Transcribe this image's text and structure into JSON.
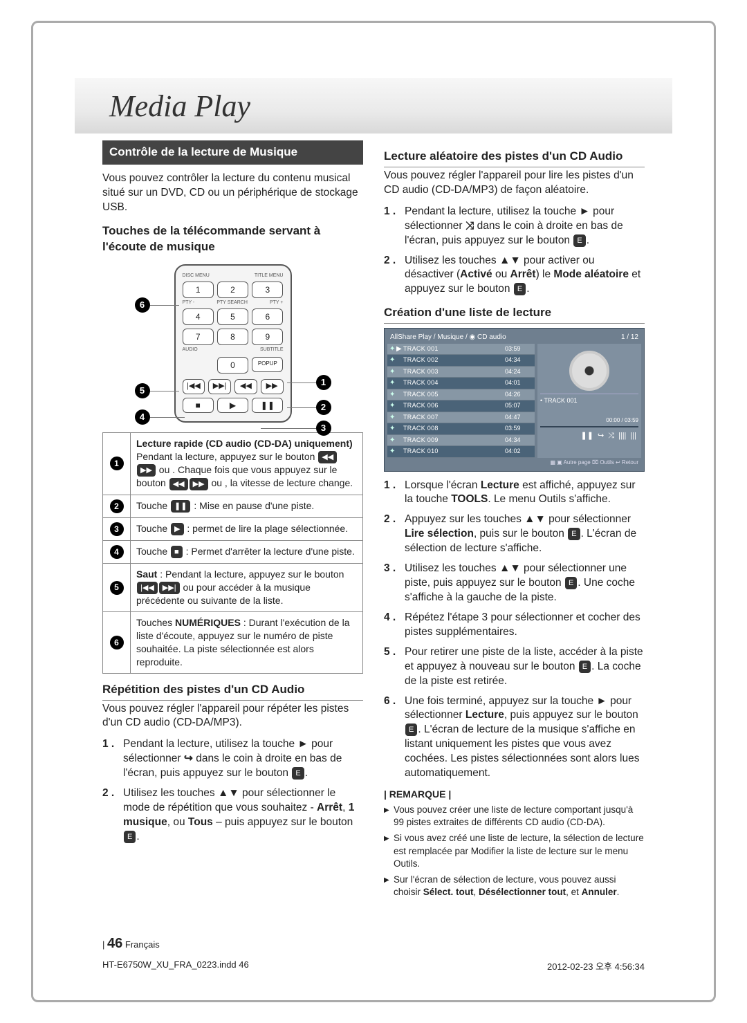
{
  "title": "Media Play",
  "left": {
    "dark_heading": "Contrôle de la lecture de Musique",
    "intro": "Vous pouvez contrôler la lecture du contenu musical situé sur un DVD, CD ou un périphérique de stockage USB.",
    "remote_heading": "Touches de la télécommande servant à l'écoute de musique",
    "remote": {
      "top_labels_l": "DISC MENU",
      "top_labels_r": "TITLE MENU",
      "pty_l": "PTY -",
      "pty_c": "PTY SEARCH",
      "pty_r": "PTY +",
      "nums": [
        "1",
        "2",
        "3",
        "4",
        "5",
        "6",
        "7",
        "8",
        "9",
        "0"
      ],
      "popup": "POPUP",
      "audio": "AUDIO",
      "sub": "SUBTITLE"
    },
    "legend": [
      {
        "n": "1",
        "text_before": "Lecture rapide (CD audio (CD-DA) uniquement)\nPendant la lecture, appuyez sur le bouton ",
        "icons1": [
          "◀◀",
          "▶▶"
        ],
        "text_mid": " ou . Chaque fois que vous appuyez sur le bouton ",
        "icons2": [
          "◀◀",
          "▶▶"
        ],
        "text_after": " ou , la vitesse de lecture change."
      },
      {
        "n": "2",
        "text_before": "Touche ",
        "icons1": [
          "❚❚"
        ],
        "text_after": " : Mise en pause d'une piste."
      },
      {
        "n": "3",
        "text_before": "Touche ",
        "icons1": [
          "▶"
        ],
        "text_after": " : permet de lire la plage sélectionnée."
      },
      {
        "n": "4",
        "text_before": "Touche ",
        "icons1": [
          "■"
        ],
        "text_after": " : Permet d'arrêter la lecture d'une piste."
      },
      {
        "n": "5",
        "text_before": "Saut : Pendant la lecture, appuyez sur le bouton ",
        "icons1": [
          "|◀◀",
          "▶▶|"
        ],
        "text_after": " ou  pour accéder à la musique précédente ou suivante de la liste."
      },
      {
        "n": "6",
        "text_before": "Touches NUMÉRIQUES : Durant l'exécution de la liste d'écoute, appuyez sur le numéro de piste souhaitée. La piste sélectionnée est alors reproduite."
      }
    ],
    "repeat_heading": "Répétition des pistes d'un CD Audio",
    "repeat_intro": "Vous pouvez régler l'appareil pour répéter les pistes d'un CD audio (CD-DA/MP3).",
    "repeat_steps": [
      "Pendant la lecture, utilisez la touche ► pour sélectionner (↪) dans le coin à droite en bas de l'écran, puis appuyez sur le bouton [E].",
      "Utilisez les touches ▲▼ pour sélectionner le mode de répétition que vous souhaitez - Arrêt, 1 musique, ou Tous – puis appuyez sur le bouton [E]."
    ]
  },
  "right": {
    "shuffle_heading": "Lecture aléatoire des pistes d'un CD Audio",
    "shuffle_intro": "Vous pouvez régler l'appareil pour lire les pistes d'un CD audio (CD-DA/MP3) de façon aléatoire.",
    "shuffle_steps": [
      "Pendant la lecture, utilisez la touche ► pour sélectionner (⤨) dans le coin à droite en bas de l'écran, puis appuyez sur le bouton [E].",
      "Utilisez les touches ▲▼ pour activer ou désactiver (Activé ou Arrêt) le Mode aléatoire et appuyez sur le bouton [E]."
    ],
    "playlist_heading": "Création d'une liste de lecture",
    "shot": {
      "breadcrumb": "AllShare Play / Musique / ◉ CD audio",
      "counter": "1 / 12",
      "tracks": [
        {
          "name": "TRACK 001",
          "dur": "03:59",
          "sel": false,
          "play": true
        },
        {
          "name": "TRACK 002",
          "dur": "04:34",
          "sel": true,
          "play": false
        },
        {
          "name": "TRACK 003",
          "dur": "04:24",
          "sel": false,
          "play": false
        },
        {
          "name": "TRACK 004",
          "dur": "04:01",
          "sel": true,
          "play": false
        },
        {
          "name": "TRACK 005",
          "dur": "04:26",
          "sel": false,
          "play": false
        },
        {
          "name": "TRACK 006",
          "dur": "05:07",
          "sel": true,
          "play": false
        },
        {
          "name": "TRACK 007",
          "dur": "04:47",
          "sel": false,
          "play": false
        },
        {
          "name": "TRACK 008",
          "dur": "03:59",
          "sel": true,
          "play": false
        },
        {
          "name": "TRACK 009",
          "dur": "04:34",
          "sel": false,
          "play": false
        },
        {
          "name": "TRACK 010",
          "dur": "04:02",
          "sel": true,
          "play": false
        }
      ],
      "now": "• TRACK 001",
      "time": "00:00 / 03:59",
      "icons": [
        "❚❚",
        "↪",
        "⤨",
        "||||",
        "|||"
      ],
      "footer": "▦ ▣ Autre page  ⌧ Outils  ↩ Retour"
    },
    "playlist_steps": [
      "Lorsque l'écran Lecture est affiché, appuyez sur la touche TOOLS. Le menu Outils s'affiche.",
      "Appuyez sur les touches ▲▼ pour sélectionner Lire sélection, puis sur le bouton [E]. L'écran de sélection de lecture s'affiche.",
      "Utilisez les touches ▲▼ pour sélectionner une piste, puis appuyez sur le bouton [E]. Une coche s'affiche à la gauche de la piste.",
      "Répétez l'étape 3 pour sélectionner et cocher des pistes supplémentaires.",
      "Pour retirer une piste de la liste, accéder à la piste et appuyez à nouveau sur le bouton [E]. La coche de la piste est retirée.",
      "Une fois terminé, appuyez sur la touche ► pour sélectionner Lecture, puis appuyez sur le bouton [E]. L'écran de lecture de la musique s'affiche en listant uniquement les pistes que vous avez cochées. Les pistes sélectionnées sont alors lues automatiquement."
    ],
    "remark_label": "| REMARQUE |",
    "remarks": [
      "Vous pouvez créer une liste de lecture comportant jusqu'à 99 pistes extraites de différents CD audio (CD-DA).",
      "Si vous avez créé une liste de lecture, la sélection de lecture est remplacée par Modifier la liste de lecture sur le menu Outils.",
      "Sur l'écran de sélection de lecture, vous pouvez aussi choisir Sélect. tout, Désélectionner tout, et Annuler."
    ]
  },
  "page_num": "46",
  "page_lang": "Français",
  "foot_left": "HT-E6750W_XU_FRA_0223.indd   46",
  "foot_right": "2012-02-23   오후 4:56:34"
}
